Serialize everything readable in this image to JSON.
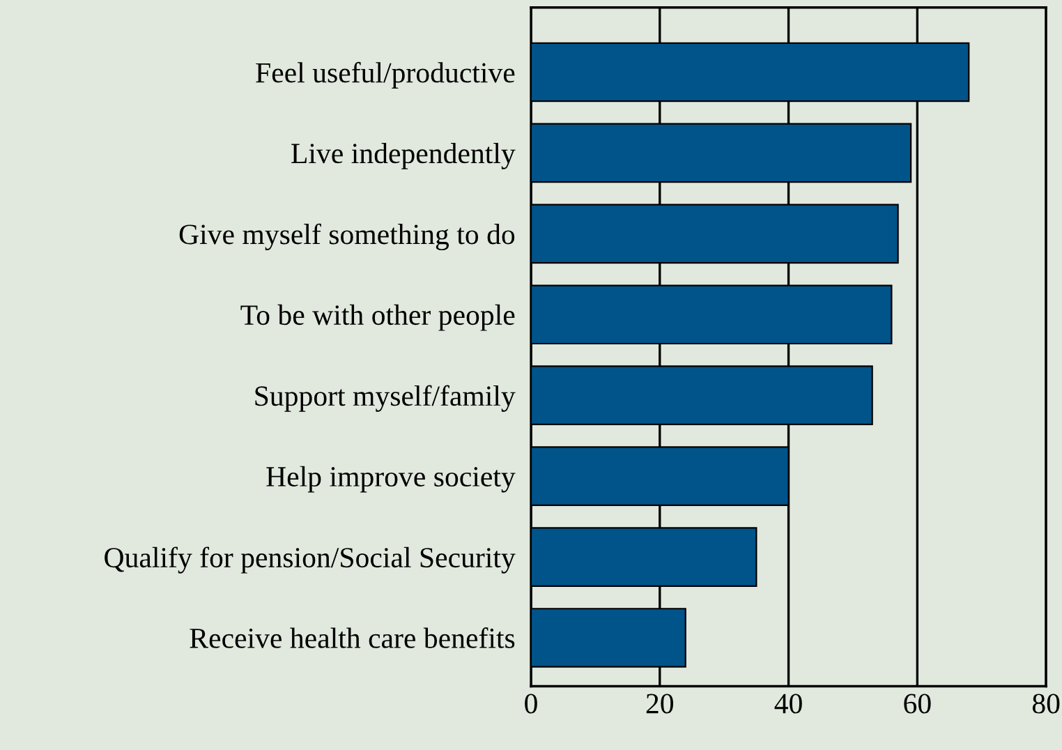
{
  "chart_data": {
    "type": "bar",
    "orientation": "horizontal",
    "categories": [
      "Feel useful/productive",
      "Live independently",
      "Give myself something to do",
      "To be with other people",
      "Support myself/family",
      "Help improve society",
      "Qualify for pension/Social Security",
      "Receive health care benefits"
    ],
    "values": [
      68,
      59,
      57,
      56,
      53,
      40,
      35,
      24
    ],
    "color": "#00548a",
    "xlim": [
      0,
      80
    ],
    "xticks": [
      0,
      20,
      40,
      60,
      80
    ],
    "grid": "x"
  }
}
